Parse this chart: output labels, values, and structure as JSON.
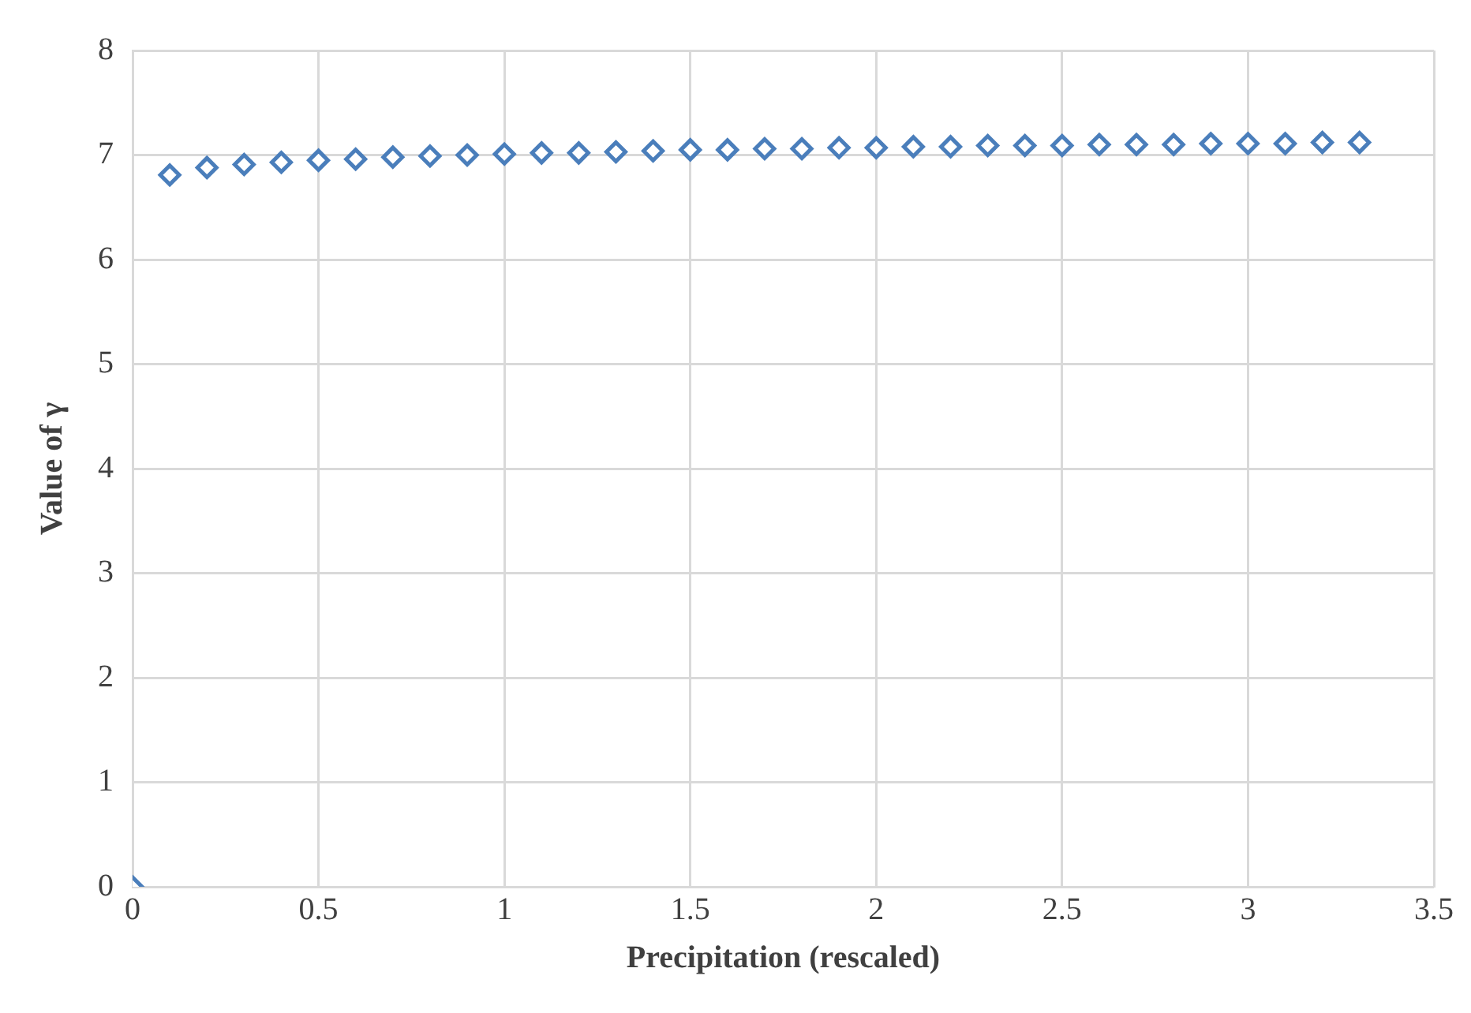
{
  "chart_data": {
    "type": "scatter",
    "xlabel": "Precipitation (rescaled)",
    "ylabel": "Value of γ",
    "x": [
      0,
      0.1,
      0.2,
      0.3,
      0.4,
      0.5,
      0.6,
      0.7,
      0.8,
      0.9,
      1.0,
      1.1,
      1.2,
      1.3,
      1.4,
      1.5,
      1.6,
      1.7,
      1.8,
      1.9,
      2.0,
      2.1,
      2.2,
      2.3,
      2.4,
      2.5,
      2.6,
      2.7,
      2.8,
      2.9,
      3.0,
      3.1,
      3.2,
      3.3
    ],
    "series": [
      {
        "color": "#4a7ebb",
        "values": [
          0,
          6.81,
          6.88,
          6.91,
          6.93,
          6.95,
          6.96,
          6.98,
          6.99,
          7.0,
          7.01,
          7.02,
          7.02,
          7.03,
          7.04,
          7.05,
          7.05,
          7.06,
          7.06,
          7.07,
          7.07,
          7.08,
          7.08,
          7.09,
          7.09,
          7.09,
          7.1,
          7.1,
          7.1,
          7.11,
          7.11,
          7.11,
          7.12,
          7.12
        ]
      }
    ],
    "xlim": [
      0,
      3.5
    ],
    "xticks": [
      0,
      0.5,
      1,
      1.5,
      2,
      2.5,
      3,
      3.5
    ],
    "ylim": [
      0,
      8
    ],
    "yticks": [
      0,
      1,
      2,
      3,
      4,
      5,
      6,
      7,
      8
    ],
    "grid": true,
    "legend": false,
    "marker": "diamond"
  }
}
